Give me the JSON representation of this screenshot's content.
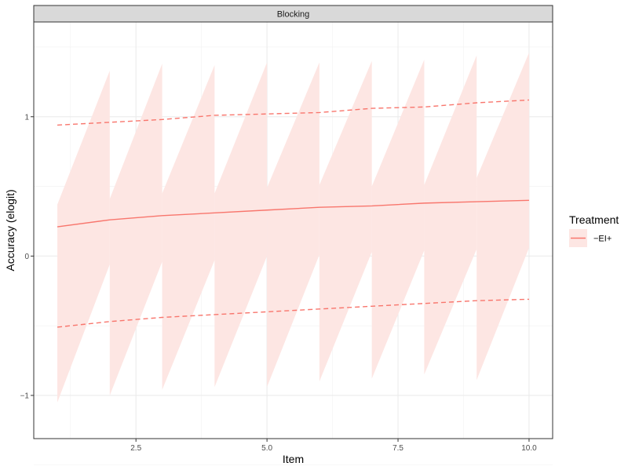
{
  "chart_data": {
    "type": "line",
    "panel_title": "Blocking",
    "xlabel": "Item",
    "ylabel": "Accuracy (elogit)",
    "xlim": [
      0.55,
      10.45
    ],
    "ylim": [
      -1.31,
      1.68
    ],
    "x_ticks": [
      2.5,
      5.0,
      7.5,
      10.0
    ],
    "x_tick_labels": [
      "2.5",
      "5.0",
      "7.5",
      "10.0"
    ],
    "y_ticks": [
      -1,
      0,
      1
    ],
    "y_tick_labels": [
      "−1",
      "0",
      "1"
    ],
    "grid": true,
    "legend": {
      "title": "Treatment",
      "position": "right",
      "entries": [
        {
          "label": "−EI+",
          "color": "#F8766D"
        }
      ]
    },
    "series": [
      {
        "name": "−EI+",
        "color": "#F8766D",
        "x": [
          1,
          2,
          3,
          4,
          5,
          6,
          7,
          8,
          9,
          10
        ],
        "y": [
          0.21,
          0.26,
          0.29,
          0.31,
          0.33,
          0.35,
          0.36,
          0.38,
          0.39,
          0.4
        ],
        "upper_dashed": [
          0.94,
          0.96,
          0.98,
          1.01,
          1.02,
          1.03,
          1.06,
          1.07,
          1.1,
          1.12
        ],
        "lower_dashed": [
          -0.51,
          -0.47,
          -0.44,
          -0.42,
          -0.4,
          -0.38,
          -0.36,
          -0.34,
          -0.32,
          -0.31
        ],
        "ribbon": [
          {
            "x0": 1,
            "x1": 2,
            "lower0": -1.05,
            "lower1": -0.06,
            "upper0": 0.37,
            "upper1": 1.33
          },
          {
            "x0": 2,
            "x1": 3,
            "lower0": -1.0,
            "lower1": -0.04,
            "upper0": 0.41,
            "upper1": 1.38
          },
          {
            "x0": 3,
            "x1": 4,
            "lower0": -0.96,
            "lower1": -0.03,
            "upper0": 0.45,
            "upper1": 1.37
          },
          {
            "x0": 4,
            "x1": 5,
            "lower0": -0.94,
            "lower1": 0.0,
            "upper0": 0.45,
            "upper1": 1.39
          },
          {
            "x0": 5,
            "x1": 6,
            "lower0": -0.94,
            "lower1": 0.01,
            "upper0": 0.49,
            "upper1": 1.39
          },
          {
            "x0": 6,
            "x1": 7,
            "lower0": -0.9,
            "lower1": 0.03,
            "upper0": 0.51,
            "upper1": 1.4
          },
          {
            "x0": 7,
            "x1": 8,
            "lower0": -0.88,
            "lower1": 0.04,
            "upper0": 0.5,
            "upper1": 1.41
          },
          {
            "x0": 8,
            "x1": 9,
            "lower0": -0.85,
            "lower1": 0.05,
            "upper0": 0.51,
            "upper1": 1.44
          },
          {
            "x0": 9,
            "x1": 10,
            "lower0": -0.89,
            "lower1": 0.06,
            "upper0": 0.56,
            "upper1": 1.46
          }
        ]
      }
    ],
    "ribbon_color": "#FDE6E3"
  }
}
